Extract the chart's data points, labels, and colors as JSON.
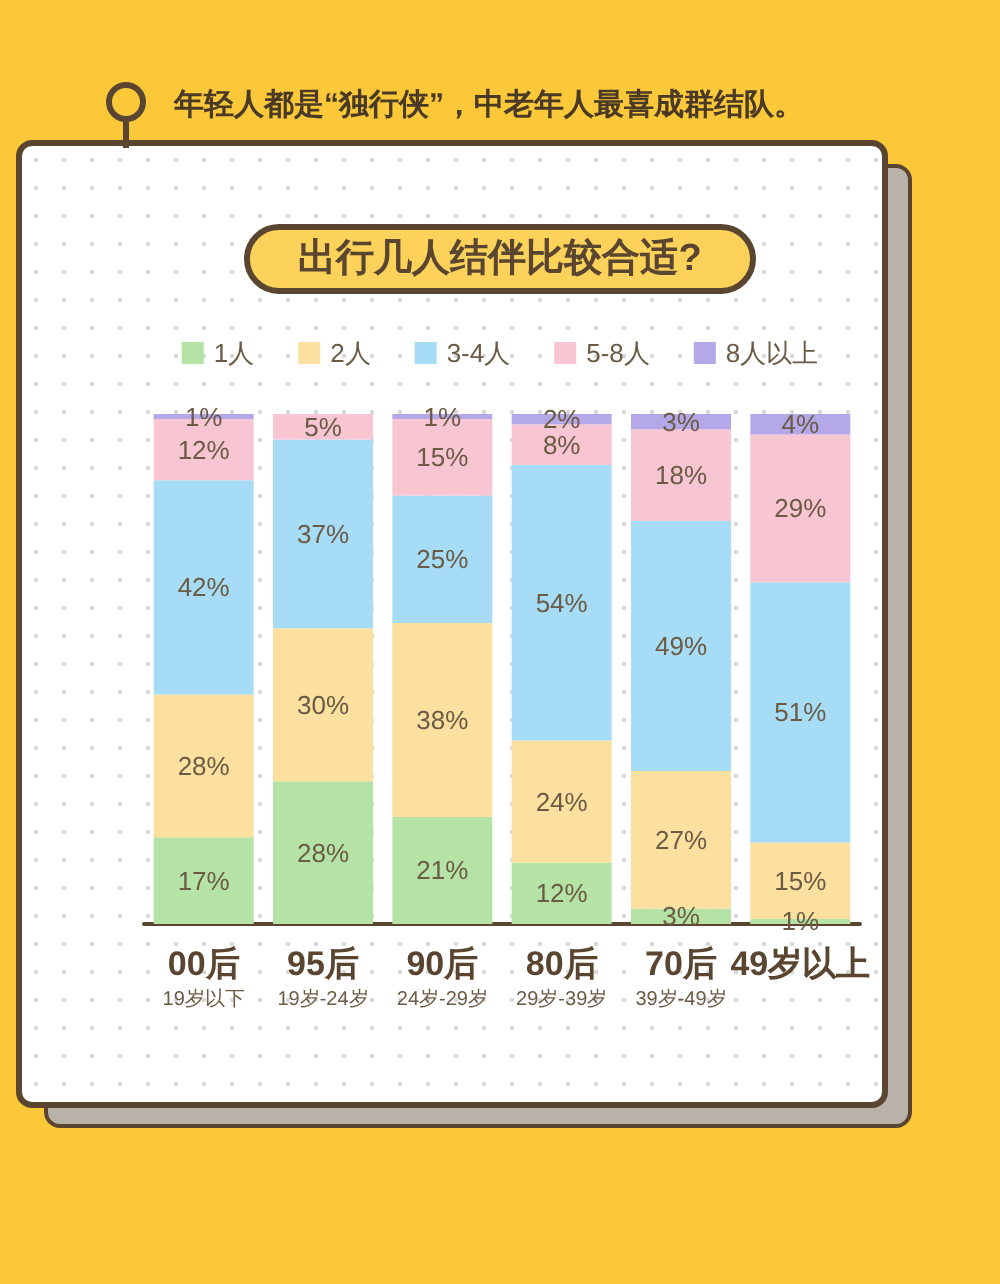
{
  "chart_data": {
    "type": "bar",
    "stacked": true,
    "title": "出行几人结伴比较合适?",
    "subtitle": "年轻人都是“独行侠”，中老年人最喜成群结队。",
    "legend": "top",
    "tick_labels": "x",
    "categories": [
      "00后\n19岁以下",
      "95后\n19岁-24岁",
      "90后\n24岁-29岁",
      "80后\n29岁-39岁",
      "70后\n39岁-49岁",
      "49岁以上"
    ],
    "series": [
      {
        "name": "1人",
        "color": "#b5e3a6",
        "values": [
          17,
          28,
          21,
          12,
          3,
          1
        ],
        "value_labels": [
          "17%",
          "28%",
          "21%",
          "12%",
          "3%",
          "1%"
        ]
      },
      {
        "name": "2人",
        "color": "#fbe0a0",
        "values": [
          28,
          30,
          38,
          24,
          27,
          15
        ],
        "value_labels": [
          "28%",
          "30%",
          "38%",
          "24%",
          "27%",
          "15%"
        ]
      },
      {
        "name": "3-4人",
        "color": "#a6dcf6",
        "values": [
          42,
          37,
          25,
          54,
          49,
          51
        ],
        "value_labels": [
          "42%",
          "37%",
          "25%",
          "54%",
          "49%",
          "51%"
        ]
      },
      {
        "name": "5-8人",
        "color": "#f8c5d3",
        "values": [
          12,
          5,
          15,
          8,
          18,
          29
        ],
        "value_labels": [
          "12%",
          "5%",
          "15%",
          "8%",
          "18%",
          "29%"
        ]
      },
      {
        "name": "8人以上",
        "color": "#b4a8e8",
        "values": [
          1,
          null,
          1,
          2,
          3,
          4
        ],
        "value_labels": [
          "1%",
          null,
          "1%",
          "2%",
          "3%",
          "4%"
        ]
      }
    ]
  }
}
